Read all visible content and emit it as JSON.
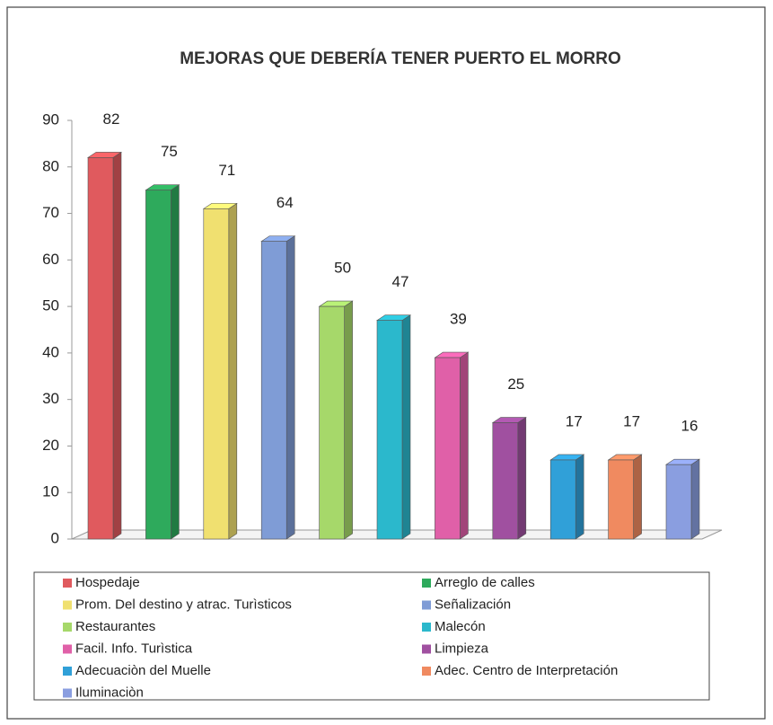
{
  "chart_data": {
    "type": "bar3d",
    "title": "MEJORAS QUE DEBERÍA TENER PUERTO EL MORRO",
    "categories": [
      "Hospedaje",
      "Arreglo de calles",
      "Prom. Del destino y atrac. Turìsticos",
      "Señalización",
      "Restaurantes",
      "Malecón",
      "Facil. Info. Turìstica",
      "Limpieza",
      "Adecuaciòn del Muelle",
      "Adec. Centro de Interpretación",
      "Iluminaciòn"
    ],
    "values": [
      82,
      75,
      71,
      64,
      50,
      47,
      39,
      25,
      17,
      17,
      16
    ],
    "colors": [
      "#e05a5e",
      "#2eaa5c",
      "#f0e070",
      "#7f9cd6",
      "#a6d86a",
      "#2bb8cc",
      "#e060a8",
      "#a050a0",
      "#30a0d8",
      "#f08a60",
      "#8a9ee0"
    ],
    "ylim": [
      0,
      90
    ],
    "yticks": [
      0,
      10,
      20,
      30,
      40,
      50,
      60,
      70,
      80,
      90
    ],
    "grid": false,
    "legend": "bottom"
  }
}
